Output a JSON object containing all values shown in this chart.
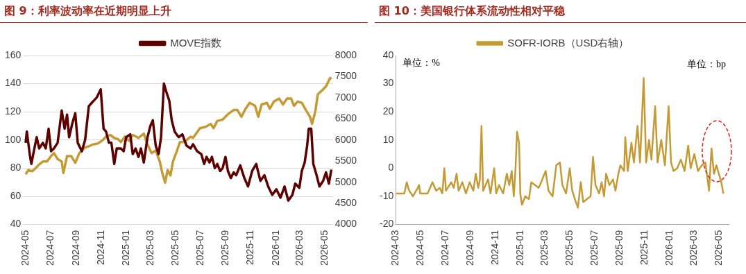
{
  "chart_data": [
    {
      "type": "line",
      "title": "图 9：利率波动率在近期明显上升",
      "xlim": [
        "2024-04-25",
        "2026-05-20"
      ],
      "xticks": [
        "2024-05",
        "2024-07",
        "2024-09",
        "2024-11",
        "2025-01",
        "2025-03",
        "2025-05",
        "2025-07",
        "2025-09",
        "2025-11",
        "2026-01",
        "2026-03",
        "2026-05"
      ],
      "ylim": [
        40,
        160
      ],
      "yticks": [
        40,
        60,
        80,
        100,
        120,
        140,
        160
      ],
      "y2lim": [
        4000,
        8000
      ],
      "y2ticks": [
        4000,
        4500,
        5000,
        5500,
        6000,
        6500,
        7000,
        7500,
        8000
      ],
      "grid": "y",
      "legend": "top",
      "series": [
        {
          "name": "MOVE指数",
          "color": "#5c0000",
          "x": [
            "2024-05-01",
            "2024-05-04",
            "2024-05-11",
            "2024-05-15",
            "2024-05-21",
            "2024-05-28",
            "2024-06-03",
            "2024-06-12",
            "2024-06-19",
            "2024-06-26",
            "2024-07-02",
            "2024-07-09",
            "2024-07-18",
            "2024-07-28",
            "2024-08-04",
            "2024-08-10",
            "2024-08-15",
            "2024-08-23",
            "2024-08-30",
            "2024-09-05",
            "2024-09-15",
            "2024-09-23",
            "2024-10-02",
            "2024-10-11",
            "2024-10-21",
            "2024-10-31",
            "2024-11-07",
            "2024-11-13",
            "2024-11-20",
            "2024-11-26",
            "2024-12-03",
            "2024-12-09",
            "2024-12-19",
            "2024-12-26",
            "2025-01-01",
            "2025-01-11",
            "2025-01-17",
            "2025-01-24",
            "2025-01-31",
            "2025-02-06",
            "2025-02-13",
            "2025-02-22",
            "2025-03-01",
            "2025-03-07",
            "2025-03-14",
            "2025-03-21",
            "2025-03-27",
            "2025-04-03",
            "2025-04-09",
            "2025-04-16",
            "2025-04-22",
            "2025-04-29",
            "2025-05-09",
            "2025-05-18",
            "2025-05-28",
            "2025-06-07",
            "2025-06-13",
            "2025-06-23",
            "2025-07-03",
            "2025-07-10",
            "2025-07-16",
            "2025-07-23",
            "2025-07-29",
            "2025-08-05",
            "2025-08-11",
            "2025-08-18",
            "2025-08-24",
            "2025-08-31",
            "2025-09-06",
            "2025-09-13",
            "2025-09-20",
            "2025-09-26",
            "2025-10-06",
            "2025-10-16",
            "2025-10-25",
            "2025-11-04",
            "2025-11-14",
            "2025-11-24",
            "2025-12-04",
            "2025-12-13",
            "2025-12-23",
            "2026-01-02",
            "2026-01-12",
            "2026-01-22",
            "2026-01-31",
            "2026-02-10",
            "2026-02-17",
            "2026-02-27",
            "2026-03-05",
            "2026-03-12",
            "2026-03-18",
            "2026-03-22",
            "2026-03-28",
            "2026-04-02",
            "2026-04-10",
            "2026-04-17",
            "2026-04-26",
            "2026-05-03",
            "2026-05-10",
            "2026-05-16"
          ],
          "values": [
            98,
            106,
            90,
            83,
            92,
            102,
            94,
            98,
            94,
            108,
            92,
            94,
            98,
            121,
            108,
            118,
            102,
            112,
            119,
            98,
            92,
            100,
            124,
            127,
            130,
            136,
            108,
            106,
            98,
            98,
            83,
            94,
            94,
            92,
            102,
            104,
            90,
            94,
            88,
            94,
            84,
            102,
            110,
            114,
            96,
            90,
            102,
            140,
            134,
            128,
            114,
            106,
            102,
            104,
            96,
            94,
            97,
            92,
            90,
            83,
            88,
            84,
            88,
            80,
            83,
            78,
            80,
            88,
            78,
            73,
            77,
            75,
            82,
            73,
            67,
            78,
            83,
            71,
            75,
            67,
            61,
            65,
            59,
            67,
            57,
            61,
            69,
            66,
            78,
            84,
            96,
            108,
            108,
            83,
            75,
            67,
            71,
            77,
            69,
            79
          ]
        },
        {
          "color": "#c49a35",
          "axis": "y2",
          "x": [
            "2024-05-01",
            "2024-05-08",
            "2024-05-17",
            "2024-05-24",
            "2024-06-03",
            "2024-06-12",
            "2024-06-22",
            "2024-07-02",
            "2024-07-09",
            "2024-07-18",
            "2024-07-28",
            "2024-08-01",
            "2024-08-10",
            "2024-08-20",
            "2024-08-30",
            "2024-09-09",
            "2024-09-22",
            "2024-10-02",
            "2024-10-11",
            "2024-10-24",
            "2024-11-03",
            "2024-11-13",
            "2024-11-23",
            "2024-12-03",
            "2024-12-12",
            "2024-12-19",
            "2024-12-29",
            "2025-01-08",
            "2025-01-17",
            "2025-01-31",
            "2025-02-13",
            "2025-02-22",
            "2025-03-04",
            "2025-03-14",
            "2025-03-24",
            "2025-03-30",
            "2025-04-06",
            "2025-04-12",
            "2025-04-19",
            "2025-04-25",
            "2025-05-05",
            "2025-05-12",
            "2025-05-22",
            "2025-05-31",
            "2025-06-07",
            "2025-06-13",
            "2025-06-30",
            "2025-07-13",
            "2025-07-26",
            "2025-08-02",
            "2025-08-11",
            "2025-08-24",
            "2025-09-06",
            "2025-09-20",
            "2025-09-29",
            "2025-10-09",
            "2025-10-19",
            "2025-10-29",
            "2025-11-11",
            "2025-11-19",
            "2025-11-27",
            "2025-12-10",
            "2025-12-17",
            "2025-12-27",
            "2026-01-09",
            "2026-01-18",
            "2026-01-28",
            "2026-02-07",
            "2026-02-14",
            "2026-02-23",
            "2026-03-05",
            "2026-03-15",
            "2026-03-25",
            "2026-03-30",
            "2026-04-07",
            "2026-04-13",
            "2026-04-23",
            "2026-05-03",
            "2026-05-13",
            "2026-05-16"
          ],
          "values": [
            5190,
            5290,
            5260,
            5320,
            5420,
            5490,
            5490,
            5620,
            5690,
            5550,
            5490,
            5220,
            5620,
            5620,
            5460,
            5690,
            5820,
            5850,
            5890,
            5920,
            5980,
            6080,
            6120,
            6050,
            6020,
            5950,
            6080,
            5980,
            6120,
            6050,
            6150,
            5890,
            5690,
            5750,
            5490,
            5220,
            4990,
            5290,
            5160,
            5490,
            5750,
            5950,
            5950,
            6020,
            6080,
            6050,
            6280,
            6310,
            6380,
            6280,
            6450,
            6480,
            6610,
            6710,
            6710,
            6550,
            6740,
            6880,
            6810,
            6550,
            6840,
            6880,
            6740,
            6910,
            6980,
            6840,
            6980,
            6980,
            6810,
            6910,
            6880,
            6710,
            6550,
            6380,
            6680,
            7080,
            7170,
            7270,
            7470,
            7440
          ]
        }
      ]
    },
    {
      "type": "line",
      "title": "图 10：美国银行体系流动性相对平稳",
      "xlim": [
        "2024-03-01",
        "2026-05-25"
      ],
      "xticks": [
        "2024-03",
        "2024-05",
        "2024-07",
        "2024-09",
        "2024-11",
        "2025-01",
        "2025-03",
        "2025-05",
        "2025-07",
        "2025-09",
        "2025-11",
        "2026-01",
        "2026-03",
        "2026-05"
      ],
      "ylim": [
        -20,
        40
      ],
      "yticks": [
        -20,
        -10,
        0,
        10,
        20,
        30,
        40
      ],
      "legend": "top",
      "annotations": [
        "单位：%",
        "单位：bp"
      ],
      "series": [
        {
          "name": "SOFR-IORB（USD右轴）",
          "color": "#c49a35",
          "x": [
            "2024-03-01",
            "2024-03-22",
            "2024-03-28",
            "2024-04-03",
            "2024-04-12",
            "2024-04-24",
            "2024-04-27",
            "2024-04-30",
            "2024-05-18",
            "2024-05-30",
            "2024-06-08",
            "2024-06-17",
            "2024-06-23",
            "2024-06-28",
            "2024-07-02",
            "2024-07-15",
            "2024-07-21",
            "2024-07-28",
            "2024-08-02",
            "2024-08-11",
            "2024-08-20",
            "2024-08-29",
            "2024-09-07",
            "2024-09-13",
            "2024-09-19",
            "2024-09-23",
            "2024-09-27",
            "2024-10-01",
            "2024-10-13",
            "2024-10-19",
            "2024-10-28",
            "2024-11-02",
            "2024-11-09",
            "2024-11-19",
            "2024-11-28",
            "2024-12-04",
            "2024-12-10",
            "2024-12-15",
            "2024-12-19",
            "2024-12-23",
            "2024-12-28",
            "2024-12-31",
            "2025-01-04",
            "2025-01-12",
            "2025-01-21",
            "2025-01-27",
            "2025-02-05",
            "2025-02-14",
            "2025-02-20",
            "2025-03-03",
            "2025-03-10",
            "2025-03-20",
            "2025-03-29",
            "2025-04-07",
            "2025-04-13",
            "2025-04-22",
            "2025-05-01",
            "2025-05-07",
            "2025-05-16",
            "2025-05-21",
            "2025-05-28",
            "2025-06-03",
            "2025-06-12",
            "2025-06-21",
            "2025-06-27",
            "2025-07-03",
            "2025-07-12",
            "2025-07-18",
            "2025-07-24",
            "2025-07-29",
            "2025-08-06",
            "2025-08-15",
            "2025-08-21",
            "2025-08-28",
            "2025-09-02",
            "2025-09-11",
            "2025-09-14",
            "2025-09-20",
            "2025-09-29",
            "2025-10-05",
            "2025-10-14",
            "2025-10-20",
            "2025-10-29",
            "2025-11-04",
            "2025-11-11",
            "2025-11-17",
            "2025-11-26",
            "2025-12-02",
            "2025-12-11",
            "2025-12-20",
            "2025-12-29",
            "2026-01-04",
            "2026-01-10",
            "2026-01-19",
            "2026-01-28",
            "2026-02-06",
            "2026-02-15",
            "2026-02-21",
            "2026-03-02",
            "2026-03-11",
            "2026-03-20",
            "2026-03-29",
            "2026-04-07",
            "2026-04-13",
            "2026-04-19",
            "2026-04-25",
            "2026-05-01",
            "2026-05-07",
            "2026-05-12"
          ],
          "values": [
            -9,
            -9,
            -5,
            -8,
            -10,
            -7,
            -6,
            -9,
            -9,
            -5,
            -8,
            -7,
            -9,
            0,
            -8,
            -5,
            -7,
            -2,
            -8,
            -5,
            -9,
            -5,
            -8,
            -2,
            -7,
            -4,
            15,
            -8,
            -4,
            -9,
            0,
            -9,
            -6,
            -9,
            -2,
            -6,
            -1,
            -10,
            -1,
            13,
            9,
            -9,
            -13,
            -10,
            -11,
            -5,
            -6,
            -7,
            -5,
            -1,
            -8,
            -10,
            1,
            2,
            -6,
            -9,
            0,
            -8,
            -12,
            -14,
            -5,
            -12,
            -11,
            -10,
            4,
            -6,
            -9,
            -5,
            -10,
            -2,
            -6,
            -4,
            -8,
            -2,
            1,
            -1,
            11,
            -1,
            9,
            2,
            15,
            2,
            32,
            2,
            10,
            3,
            22,
            2,
            10,
            1,
            22,
            2,
            -1,
            0,
            3,
            -1,
            8,
            0,
            5,
            -1,
            1,
            2,
            -8,
            7,
            -2,
            1,
            -2,
            -5,
            -9
          ]
        }
      ]
    }
  ]
}
